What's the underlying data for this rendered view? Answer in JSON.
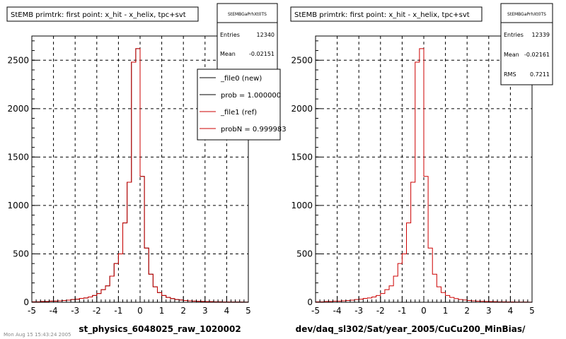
{
  "chart_data": [
    {
      "type": "histogram",
      "title": "StEMB primtrk: first point: x_hit - x_helix, tpc+svt",
      "xlabel": "st_physics_6048025_raw_1020002",
      "ylabel": "",
      "xlim": [
        -5,
        5
      ],
      "ylim": [
        0,
        2750
      ],
      "x_ticks": [
        "-5",
        "-4",
        "-3",
        "-2",
        "-1",
        "0",
        "1",
        "2",
        "3",
        "4",
        "5"
      ],
      "y_ticks": [
        "0",
        "500",
        "1000",
        "1500",
        "2000",
        "2500"
      ],
      "grid": true,
      "stats_box": {
        "name": "StEMBGaPrhXt0TS",
        "rows": [
          {
            "label": "Entries",
            "value": "12340"
          },
          {
            "label": "Mean",
            "value": "-0.02151"
          }
        ]
      },
      "legend": {
        "placement": "top-right",
        "entries": [
          {
            "label": "_file0 (new)",
            "color": "#000000"
          },
          {
            "label": "prob = 1.000000",
            "color": "#000000"
          },
          {
            "label": "_file1 (ref)",
            "color": "#cc0000"
          },
          {
            "label": "probN = 0.999983",
            "color": "#cc0000"
          }
        ]
      },
      "bin_edges": [
        -5.0,
        -4.8,
        -4.6,
        -4.4,
        -4.2,
        -4.0,
        -3.8,
        -3.6,
        -3.4,
        -3.2,
        -3.0,
        -2.8,
        -2.6,
        -2.4,
        -2.2,
        -2.0,
        -1.8,
        -1.6,
        -1.4,
        -1.2,
        -1.0,
        -0.8,
        -0.6,
        -0.4,
        -0.2,
        0.0,
        0.2,
        0.4,
        0.6,
        0.8,
        1.0,
        1.2,
        1.4,
        1.6,
        1.8,
        2.0,
        2.2,
        2.4,
        2.6,
        2.8,
        3.0,
        3.2,
        3.4,
        3.6,
        3.8,
        4.0,
        4.2,
        4.4,
        4.6,
        4.8,
        5.0
      ],
      "series": [
        {
          "name": "_file0 (new)",
          "color": "#000000",
          "values": [
            5,
            5,
            8,
            8,
            12,
            12,
            15,
            18,
            22,
            28,
            32,
            40,
            45,
            55,
            70,
            90,
            130,
            170,
            270,
            400,
            500,
            820,
            1240,
            2480,
            2620,
            1300,
            560,
            290,
            160,
            100,
            70,
            50,
            38,
            28,
            24,
            18,
            15,
            12,
            10,
            8,
            7,
            6,
            5,
            5,
            4,
            4,
            3,
            3,
            3,
            2
          ]
        },
        {
          "name": "_file1 (ref)",
          "color": "#cc0000",
          "values": [
            5,
            5,
            8,
            8,
            12,
            12,
            15,
            18,
            22,
            28,
            32,
            40,
            45,
            55,
            70,
            90,
            130,
            170,
            270,
            400,
            500,
            820,
            1240,
            2480,
            2620,
            1300,
            560,
            290,
            160,
            100,
            70,
            50,
            38,
            28,
            24,
            18,
            15,
            12,
            10,
            8,
            7,
            6,
            5,
            5,
            4,
            4,
            3,
            3,
            3,
            2
          ]
        }
      ]
    },
    {
      "type": "histogram",
      "title": "StEMB primtrk: first point: x_hit - x_helix, tpc+svt",
      "xlabel": "dev/daq_sl302/Sat/year_2005/CuCu200_MinBias/",
      "ylabel": "",
      "xlim": [
        -5,
        5
      ],
      "ylim": [
        0,
        2750
      ],
      "x_ticks": [
        "-5",
        "-4",
        "-3",
        "-2",
        "-1",
        "0",
        "1",
        "2",
        "3",
        "4",
        "5"
      ],
      "y_ticks": [
        "0",
        "500",
        "1000",
        "1500",
        "2000",
        "2500"
      ],
      "grid": true,
      "stats_box": {
        "name": "StEMBGaPrhXt0TS",
        "rows": [
          {
            "label": "Entries",
            "value": "12339"
          },
          {
            "label": "Mean",
            "value": "-0.02161"
          },
          {
            "label": "RMS",
            "value": "0.7211"
          }
        ]
      },
      "bin_edges": [
        -5.0,
        -4.8,
        -4.6,
        -4.4,
        -4.2,
        -4.0,
        -3.8,
        -3.6,
        -3.4,
        -3.2,
        -3.0,
        -2.8,
        -2.6,
        -2.4,
        -2.2,
        -2.0,
        -1.8,
        -1.6,
        -1.4,
        -1.2,
        -1.0,
        -0.8,
        -0.6,
        -0.4,
        -0.2,
        0.0,
        0.2,
        0.4,
        0.6,
        0.8,
        1.0,
        1.2,
        1.4,
        1.6,
        1.8,
        2.0,
        2.2,
        2.4,
        2.6,
        2.8,
        3.0,
        3.2,
        3.4,
        3.6,
        3.8,
        4.0,
        4.2,
        4.4,
        4.6,
        4.8,
        5.0
      ],
      "series": [
        {
          "name": "_file1 (ref)",
          "color": "#cc0000",
          "values": [
            5,
            5,
            8,
            8,
            12,
            12,
            15,
            18,
            22,
            28,
            32,
            40,
            45,
            55,
            70,
            90,
            130,
            170,
            270,
            400,
            500,
            820,
            1240,
            2480,
            2620,
            1300,
            560,
            290,
            160,
            100,
            70,
            50,
            38,
            28,
            24,
            18,
            15,
            12,
            10,
            8,
            7,
            6,
            5,
            5,
            4,
            4,
            3,
            3,
            3,
            2
          ]
        }
      ]
    }
  ],
  "footer_text": "Mon Aug 15 15:43:24 2005"
}
